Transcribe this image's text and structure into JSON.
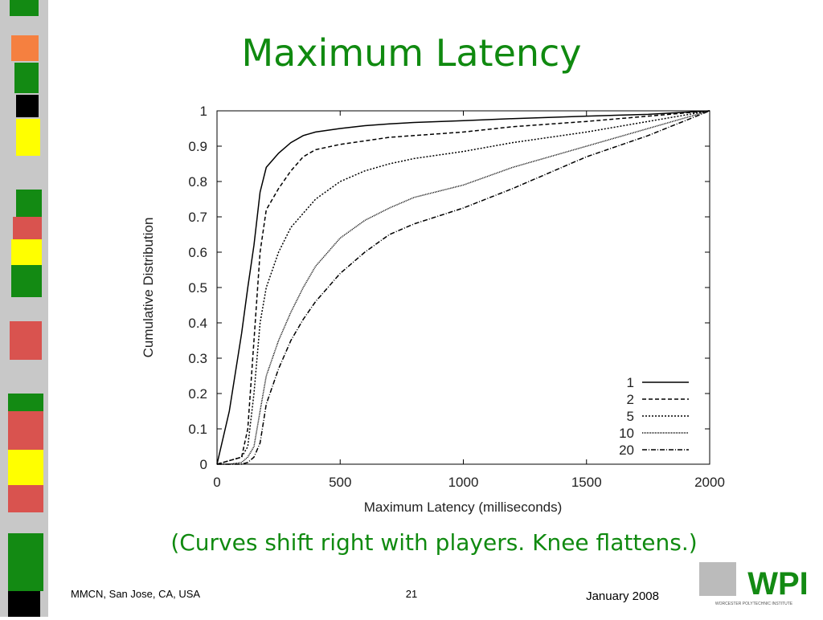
{
  "slide": {
    "title": "Maximum Latency",
    "caption": "(Curves shift right with players.  Knee flattens.)",
    "footer_left": "MMCN, San Jose, CA, USA",
    "page_number": "21",
    "footer_right": "January 2008",
    "logo": "WPI",
    "logo_subtext": "WORCESTER POLYTECHNIC INSTITUTE"
  },
  "chart_data": {
    "type": "line",
    "xlabel": "Maximum Latency (milliseconds)",
    "ylabel": "Cumulative Distribution",
    "x": [
      0,
      50,
      100,
      125,
      150,
      175,
      200,
      250,
      300,
      350,
      400,
      500,
      600,
      700,
      800,
      1000,
      1200,
      1500,
      1750,
      2000
    ],
    "series": [
      {
        "name": "1",
        "color": "#000000",
        "dash": "none",
        "values": [
          0,
          0.15,
          0.37,
          0.5,
          0.62,
          0.77,
          0.84,
          0.88,
          0.91,
          0.93,
          0.94,
          0.95,
          0.958,
          0.963,
          0.967,
          0.972,
          0.978,
          0.985,
          0.99,
          1
        ]
      },
      {
        "name": "2",
        "color": "#000000",
        "dash": "5 3",
        "values": [
          0,
          0.01,
          0.02,
          0.1,
          0.35,
          0.6,
          0.72,
          0.78,
          0.83,
          0.87,
          0.89,
          0.905,
          0.915,
          0.925,
          0.93,
          0.94,
          0.955,
          0.97,
          0.985,
          1
        ]
      },
      {
        "name": "5",
        "color": "#000000",
        "dash": "2 2",
        "values": [
          0,
          0.01,
          0.02,
          0.05,
          0.2,
          0.4,
          0.5,
          0.6,
          0.67,
          0.71,
          0.75,
          0.8,
          0.83,
          0.85,
          0.865,
          0.885,
          0.91,
          0.94,
          0.97,
          1
        ]
      },
      {
        "name": "10",
        "color": "#000000",
        "dash": "1 1",
        "values": [
          0,
          0,
          0.005,
          0.02,
          0.05,
          0.15,
          0.25,
          0.35,
          0.43,
          0.5,
          0.56,
          0.64,
          0.69,
          0.725,
          0.755,
          0.79,
          0.84,
          0.9,
          0.95,
          1
        ]
      },
      {
        "name": "20",
        "color": "#000000",
        "dash": "6 2 1 2",
        "values": [
          0,
          0,
          0,
          0.005,
          0.02,
          0.06,
          0.17,
          0.27,
          0.35,
          0.41,
          0.46,
          0.54,
          0.6,
          0.65,
          0.68,
          0.725,
          0.78,
          0.87,
          0.93,
          1
        ]
      }
    ],
    "xlim": [
      0,
      2000
    ],
    "xticks": [
      0,
      500,
      1000,
      1500,
      2000
    ],
    "ylim": [
      0,
      1
    ],
    "yticks": [
      0,
      0.1,
      0.2,
      0.3,
      0.4,
      0.5,
      0.6,
      0.7,
      0.8,
      0.9,
      1
    ],
    "legend": "lower right",
    "grid": false
  }
}
